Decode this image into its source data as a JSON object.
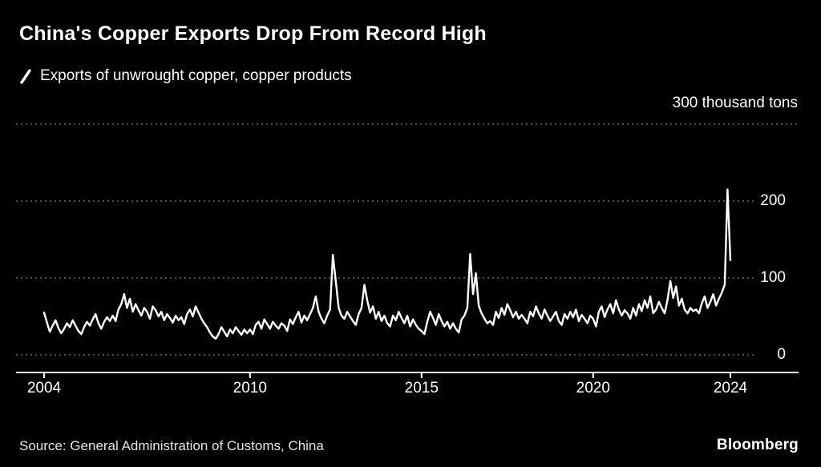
{
  "title": "China's Copper Exports Drop From Record High",
  "legend": {
    "label": "Exports of unwrought copper, copper products"
  },
  "unit_label": "300 thousand tons",
  "source": "Source: General Administration of Customs, China",
  "brand": "Bloomberg",
  "colors": {
    "background": "#000000",
    "line": "#ffffff",
    "grid": "#9a9a9a",
    "text": "#ffffff"
  },
  "chart_data": {
    "type": "line",
    "title": "China's Copper Exports Drop From Record High",
    "subtitle": "Exports of unwrought copper, copper products",
    "ylabel": "thousand tons",
    "ylim": [
      0,
      300
    ],
    "yticks": [
      0,
      100,
      200,
      300
    ],
    "ytick_labels_right": [
      "200",
      "100",
      "0"
    ],
    "xticks": [
      2004,
      2010,
      2015,
      2020,
      2024
    ],
    "x_start_year": 2004,
    "x_frequency": "monthly",
    "grid": "dotted-horizontal",
    "legend_position": "top-left",
    "series_name": "Exports of unwrought copper, copper products",
    "values": [
      55,
      42,
      30,
      38,
      45,
      35,
      28,
      34,
      41,
      36,
      45,
      38,
      31,
      27,
      36,
      43,
      38,
      46,
      53,
      41,
      34,
      43,
      49,
      44,
      51,
      44,
      59,
      66,
      79,
      61,
      73,
      56,
      66,
      58,
      51,
      61,
      56,
      47,
      63,
      58,
      50,
      56,
      45,
      53,
      48,
      42,
      51,
      45,
      49,
      40,
      53,
      59,
      50,
      63,
      55,
      47,
      41,
      36,
      29,
      24,
      21,
      27,
      36,
      30,
      24,
      33,
      28,
      36,
      31,
      26,
      33,
      28,
      33,
      27,
      39,
      43,
      34,
      46,
      40,
      34,
      43,
      38,
      34,
      41,
      38,
      31,
      46,
      40,
      49,
      56,
      42,
      51,
      45,
      53,
      61,
      76,
      56,
      47,
      41,
      51,
      59,
      130,
      96,
      61,
      51,
      47,
      56,
      50,
      44,
      39,
      53,
      61,
      91,
      71,
      55,
      63,
      47,
      56,
      44,
      51,
      41,
      37,
      51,
      45,
      56,
      48,
      41,
      51,
      37,
      46,
      39,
      34,
      31,
      27,
      43,
      56,
      48,
      39,
      53,
      44,
      37,
      43,
      34,
      41,
      34,
      29,
      46,
      51,
      61,
      131,
      79,
      106,
      64,
      54,
      47,
      41,
      44,
      39,
      56,
      48,
      61,
      52,
      66,
      58,
      49,
      56,
      47,
      52,
      47,
      41,
      56,
      50,
      63,
      54,
      47,
      59,
      51,
      44,
      50,
      56,
      44,
      39,
      53,
      47,
      56,
      49,
      59,
      44,
      52,
      47,
      41,
      51,
      47,
      37,
      56,
      63,
      49,
      59,
      66,
      54,
      71,
      59,
      51,
      58,
      54,
      47,
      61,
      51,
      66,
      57,
      71,
      61,
      76,
      54,
      59,
      69,
      61,
      54,
      71,
      96,
      74,
      89,
      64,
      73,
      59,
      54,
      61,
      57,
      59,
      54,
      67,
      76,
      61,
      69,
      79,
      64,
      73,
      81,
      91,
      215,
      123
    ]
  }
}
